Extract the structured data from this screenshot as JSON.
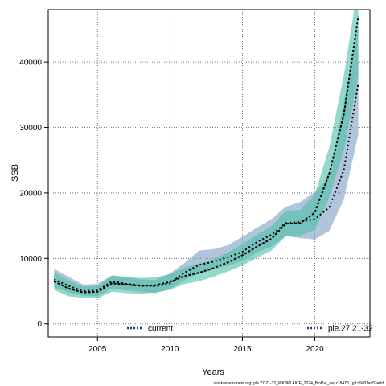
{
  "chart_data": {
    "type": "line",
    "xlabel": "Years",
    "ylabel": "SSB",
    "xlim": [
      2001.6,
      2023.8
    ],
    "ylim": [
      -2000,
      48000
    ],
    "x_ticks": [
      2005,
      2010,
      2015,
      2020
    ],
    "y_ticks": [
      0,
      10000,
      20000,
      30000,
      40000
    ],
    "x_tick_labels": [
      "2005",
      "2010",
      "2015",
      "2020"
    ],
    "y_tick_labels": [
      "0",
      "10000",
      "20000",
      "30000",
      "40000"
    ],
    "grid": true,
    "legend": {
      "placement": "bottom",
      "entries": [
        "current",
        "ple.27.21-32"
      ]
    },
    "footer": "stockassessment.org, ple.27.21-32_WKBPLAICE_2024_BioPar_sw, r18478 , git:c9c81ac53a0d",
    "colors": {
      "current_band": "#7c9fc2",
      "ple_band": "#4fbfa8",
      "overlap_band": "#55a7a6",
      "line": "#000000",
      "legend_line": "#1f3f73"
    },
    "series": [
      {
        "name": "current",
        "x": [
          2002,
          2003,
          2004,
          2005,
          2006,
          2007,
          2008,
          2009,
          2010,
          2011,
          2012,
          2013,
          2014,
          2015,
          2016,
          2017,
          2018,
          2019,
          2020,
          2021,
          2022,
          2023
        ],
        "values": [
          6800,
          5800,
          5000,
          5100,
          6500,
          6100,
          5900,
          5700,
          6200,
          7800,
          9000,
          9500,
          10200,
          11000,
          12500,
          13600,
          15400,
          15600,
          16000,
          17800,
          23500,
          36800
        ],
        "lower": [
          5600,
          4800,
          4300,
          4200,
          5400,
          5100,
          4900,
          4700,
          5300,
          6700,
          7700,
          8300,
          8900,
          9600,
          10900,
          11800,
          13400,
          13100,
          12900,
          14200,
          19000,
          29000
        ],
        "upper": [
          8400,
          7200,
          6000,
          6100,
          7400,
          7100,
          6800,
          6700,
          7700,
          9300,
          11200,
          11400,
          12000,
          13300,
          14700,
          16000,
          17900,
          18600,
          20200,
          22500,
          34000,
          46000
        ]
      },
      {
        "name": "ple.27.21-32",
        "x": [
          2002,
          2003,
          2004,
          2005,
          2006,
          2007,
          2008,
          2009,
          2010,
          2011,
          2012,
          2013,
          2014,
          2015,
          2016,
          2017,
          2018,
          2019,
          2020,
          2021,
          2022,
          2023
        ],
        "values": [
          6500,
          5400,
          4800,
          4900,
          6200,
          6000,
          5800,
          5900,
          6400,
          7300,
          7800,
          8500,
          9400,
          10500,
          11800,
          13000,
          15300,
          15400,
          17000,
          23000,
          32000,
          47000
        ],
        "lower": [
          5200,
          4200,
          4000,
          3900,
          4900,
          4700,
          4600,
          4800,
          5200,
          6100,
          6500,
          7200,
          8000,
          8900,
          10100,
          11200,
          13400,
          13500,
          14300,
          19300,
          26500,
          38000
        ],
        "upper": [
          7800,
          6700,
          5700,
          5800,
          7400,
          7200,
          7000,
          7100,
          7600,
          8600,
          9200,
          9900,
          10900,
          12200,
          13600,
          14900,
          17300,
          17400,
          19800,
          27000,
          38000,
          52000
        ]
      }
    ]
  }
}
